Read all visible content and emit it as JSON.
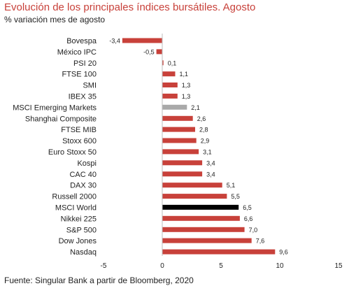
{
  "header": {
    "title": "Evolución  de los principales índices bursátiles. Agosto",
    "subtitle": "% variación mes de agosto"
  },
  "footer": {
    "source": "Fuente: Singular Bank a partir de Bloomberg, 2020"
  },
  "colors": {
    "default_bar": "#c8413a",
    "emerging_bar": "#a9a9a9",
    "world_bar": "#000000",
    "title": "#c8413a"
  },
  "chart_data": {
    "type": "bar",
    "orientation": "horizontal",
    "categories": [
      "Bovespa",
      "México IPC",
      "PSI 20",
      "FTSE 100",
      "SMI",
      "IBEX 35",
      "MSCI Emerging Markets",
      "Shanghai Composite",
      "FTSE MIB",
      "Stoxx 600",
      "Euro Stoxx 50",
      "Kospi",
      "CAC 40",
      "DAX 30",
      "Russell 2000",
      "MSCI World",
      "Nikkei 225",
      "S&P 500",
      "Dow Jones",
      "Nasdaq"
    ],
    "values": [
      -3.4,
      -0.5,
      0.1,
      1.1,
      1.3,
      1.3,
      2.1,
      2.6,
      2.8,
      2.9,
      3.1,
      3.4,
      3.4,
      5.1,
      5.5,
      6.5,
      6.6,
      7.0,
      7.6,
      9.6
    ],
    "value_labels": [
      "-3,4",
      "-0,5",
      "0,1",
      "1,1",
      "1,3",
      "1,3",
      "2,1",
      "2,6",
      "2,8",
      "2,9",
      "3,1",
      "3,4",
      "3,4",
      "5,1",
      "5,5",
      "6,5",
      "6,6",
      "7,0",
      "7,6",
      "9,6"
    ],
    "bar_colors": [
      "#c8413a",
      "#c8413a",
      "#c8413a",
      "#c8413a",
      "#c8413a",
      "#c8413a",
      "#a9a9a9",
      "#c8413a",
      "#c8413a",
      "#c8413a",
      "#c8413a",
      "#c8413a",
      "#c8413a",
      "#c8413a",
      "#c8413a",
      "#000000",
      "#c8413a",
      "#c8413a",
      "#c8413a",
      "#c8413a"
    ],
    "xlim": [
      -5,
      15
    ],
    "xticks": [
      -5,
      0,
      5,
      10,
      15
    ],
    "xtick_labels": [
      "-5",
      "0",
      "5",
      "10",
      "15"
    ],
    "grid": false,
    "legend": "none"
  }
}
